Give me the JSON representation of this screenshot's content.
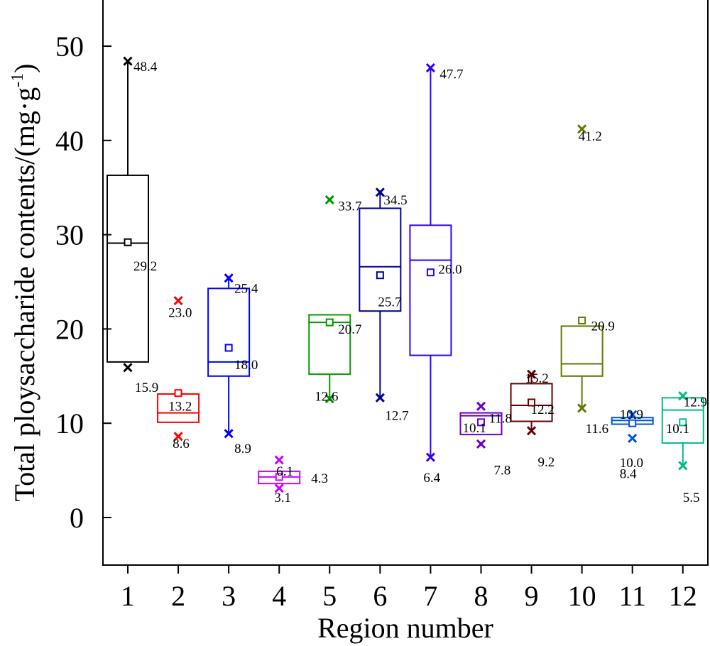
{
  "chart_data": {
    "type": "box",
    "xlabel": "Region number",
    "ylabel": {
      "main": "Total ploysaccharide contents/(mg·g",
      "superscript": "-1",
      "close": ")"
    },
    "ylim": [
      -5,
      55
    ],
    "yticks": [
      0,
      10,
      20,
      30,
      40,
      50
    ],
    "grid": false,
    "legend": "none",
    "categories": [
      "1",
      "2",
      "3",
      "4",
      "5",
      "6",
      "7",
      "8",
      "9",
      "10",
      "11",
      "12"
    ],
    "boxes": [
      {
        "region": "1",
        "color": "#000000",
        "q1": 16.5,
        "median": 29.1,
        "q3": 36.3,
        "mean": 29.2,
        "whisker_low": 16.5,
        "whisker_high": 48.4,
        "max": 48.4,
        "min": 15.9
      },
      {
        "region": "2",
        "color": "#ff0000",
        "q1": 10.1,
        "median": 11.1,
        "q3": 13.1,
        "mean": 13.2,
        "whisker_low": 10.1,
        "whisker_high": 13.1,
        "max": 23.0,
        "min": 8.6
      },
      {
        "region": "3",
        "color": "#0000ff",
        "q1": 15.0,
        "median": 16.5,
        "q3": 24.3,
        "mean": 18.0,
        "whisker_low": 8.9,
        "whisker_high": 25.4,
        "max": 25.4,
        "min": 8.9
      },
      {
        "region": "4",
        "color": "#cc00ff",
        "q1": 3.6,
        "median": 4.3,
        "q3": 4.9,
        "mean": 4.3,
        "whisker_low": 3.6,
        "whisker_high": 4.9,
        "max": 6.1,
        "min": 3.1
      },
      {
        "region": "5",
        "color": "#009900",
        "q1": 15.2,
        "median": 20.7,
        "q3": 21.5,
        "mean": 20.7,
        "whisker_low": 12.6,
        "whisker_high": 21.5,
        "max": 33.7,
        "min": 12.6
      },
      {
        "region": "6",
        "color": "#000099",
        "q1": 21.9,
        "median": 26.6,
        "q3": 32.8,
        "mean": 25.7,
        "whisker_low": 12.7,
        "whisker_high": 34.5,
        "max": 34.5,
        "min": 12.7
      },
      {
        "region": "7",
        "color": "#3300ff",
        "q1": 17.2,
        "median": 27.3,
        "q3": 31.0,
        "mean": 26.0,
        "whisker_low": 6.4,
        "whisker_high": 47.7,
        "max": 47.7,
        "min": 6.4
      },
      {
        "region": "8",
        "color": "#6600cc",
        "q1": 8.8,
        "median": 10.8,
        "q3": 11.1,
        "mean": 10.1,
        "whisker_low": 8.8,
        "whisker_high": 11.1,
        "max": 11.8,
        "min": 7.8
      },
      {
        "region": "9",
        "color": "#660000",
        "q1": 10.2,
        "median": 11.9,
        "q3": 14.2,
        "mean": 12.2,
        "whisker_low": 9.2,
        "whisker_high": 15.2,
        "max": 15.2,
        "min": 9.2
      },
      {
        "region": "10",
        "color": "#667700",
        "q1": 15.0,
        "median": 16.3,
        "q3": 20.3,
        "mean": 20.9,
        "whisker_low": 11.6,
        "whisker_high": 20.3,
        "max": 41.2,
        "min": 11.6
      },
      {
        "region": "11",
        "color": "#0055dd",
        "q1": 9.9,
        "median": 10.3,
        "q3": 10.6,
        "mean": 10.0,
        "whisker_low": 9.9,
        "whisker_high": 10.6,
        "max": 10.9,
        "min": 8.4
      },
      {
        "region": "12",
        "color": "#00bb88",
        "q1": 7.9,
        "median": 11.4,
        "q3": 12.7,
        "mean": 10.1,
        "whisker_low": 5.5,
        "whisker_high": 12.9,
        "max": 12.9,
        "min": 5.5
      }
    ],
    "data_labels": [
      {
        "region": "1",
        "text": "48.4"
      },
      {
        "region": "1",
        "text": "29.2"
      },
      {
        "region": "1",
        "text": "15.9"
      },
      {
        "region": "2",
        "text": "23.0"
      },
      {
        "region": "2",
        "text": "13.2"
      },
      {
        "region": "2",
        "text": "8.6"
      },
      {
        "region": "3",
        "text": "25.4"
      },
      {
        "region": "3",
        "text": "18.0"
      },
      {
        "region": "3",
        "text": "8.9"
      },
      {
        "region": "4",
        "text": "6.1"
      },
      {
        "region": "4",
        "text": "4.3"
      },
      {
        "region": "4",
        "text": "3.1"
      },
      {
        "region": "5",
        "text": "33.7"
      },
      {
        "region": "5",
        "text": "20.7"
      },
      {
        "region": "5",
        "text": "12.6"
      },
      {
        "region": "6",
        "text": "34.5"
      },
      {
        "region": "6",
        "text": "25.7"
      },
      {
        "region": "6",
        "text": "12.7"
      },
      {
        "region": "7",
        "text": "47.7"
      },
      {
        "region": "7",
        "text": "26.0"
      },
      {
        "region": "7",
        "text": "6.4"
      },
      {
        "region": "8",
        "text": "10.1"
      },
      {
        "region": "8",
        "text": "11.8"
      },
      {
        "region": "8",
        "text": "7.8"
      },
      {
        "region": "9",
        "text": "15.2"
      },
      {
        "region": "9",
        "text": "12.2"
      },
      {
        "region": "9",
        "text": "9.2"
      },
      {
        "region": "10",
        "text": "41.2"
      },
      {
        "region": "10",
        "text": "20.9"
      },
      {
        "region": "10",
        "text": "11.6"
      },
      {
        "region": "11",
        "text": "10.9"
      },
      {
        "region": "11",
        "text": "10.0"
      },
      {
        "region": "11",
        "text": "8.4"
      },
      {
        "region": "12",
        "text": "12.9"
      },
      {
        "region": "12",
        "text": "10.1"
      },
      {
        "region": "12",
        "text": "5.5"
      }
    ]
  }
}
